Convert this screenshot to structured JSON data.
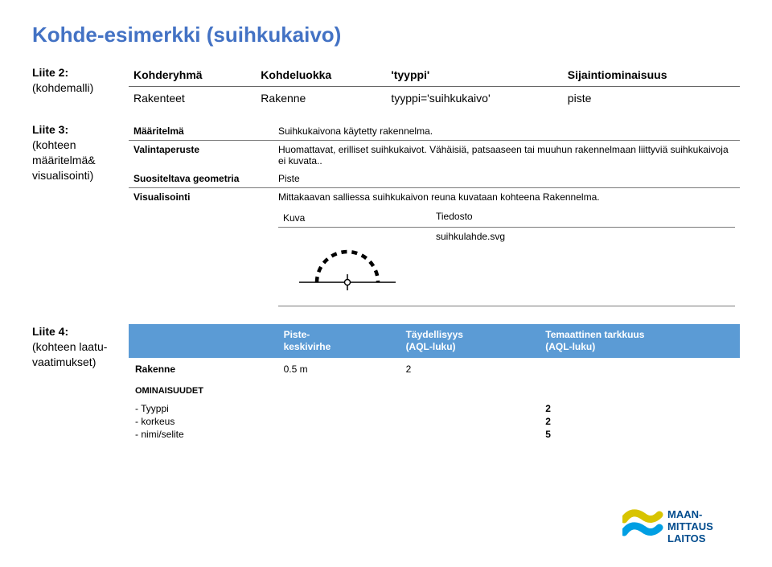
{
  "title": "Kohde-esimerkki (suihkukaivo)",
  "colors": {
    "title": "#4372c4",
    "tableHeaderBg": "#5b9bd5",
    "tableHeaderText": "#ffffff",
    "border": "#7a7a7a",
    "fountainStroke": "#000000",
    "logoTop": "#d8c400",
    "logoBottom": "#009fe3",
    "logoText": "#004b8d"
  },
  "liite2": {
    "label_main": "Liite 2:",
    "label_sub": "(kohdemalli)",
    "headers": [
      "Kohderyhmä",
      "Kohdeluokka",
      "'tyyppi'",
      "Sijaintiominaisuus"
    ],
    "row": [
      "Rakenteet",
      "Rakenne",
      "tyyppi='suihkukaivo'",
      "piste"
    ]
  },
  "liite3": {
    "label_main": "Liite 3:",
    "label_sub": "(kohteen määritelmä& visualisointi)",
    "rows": [
      {
        "label": "Määritelmä",
        "value": "Suihkukaivona käytetty rakennelma."
      },
      {
        "label": "Valintaperuste",
        "value": "Huomattavat, erilliset suihkukaivot. Vähäisiä, patsaaseen tai muuhun rakennelmaan liittyviä suihkukaivoja ei kuvata.."
      },
      {
        "label": "Suositeltava geometria",
        "value": "Piste"
      },
      {
        "label": "Visualisointi",
        "value": "Mittakaavan salliessa suihkukaivon reuna kuvataan kohteena Rakennelma."
      }
    ],
    "kuva_label": "Kuva",
    "tiedosto_label": "Tiedosto",
    "svg_name": "suihkulahde.svg"
  },
  "liite4": {
    "label_main": "Liite 4:",
    "label_sub": "(kohteen laatu-vaatimukset)",
    "headers": [
      "",
      "Piste-\nkeskivirhe",
      "Täydellisyys\n(AQL-luku)",
      "Temaattinen tarkkuus\n(AQL-luku)"
    ],
    "row1": {
      "name": "Rakenne",
      "c1": "0.5 m",
      "c2": "2",
      "c3": ""
    },
    "ominaisuudet": {
      "title": "OMINAISUUDET",
      "items": [
        {
          "label": "- Tyyppi",
          "val": "2"
        },
        {
          "label": "- korkeus",
          "val": "2"
        },
        {
          "label": "- nimi/selite",
          "val": "5"
        }
      ]
    }
  },
  "logo": {
    "line1": "MAAN-",
    "line2": "MITTAUS",
    "line3": "LAITOS"
  }
}
